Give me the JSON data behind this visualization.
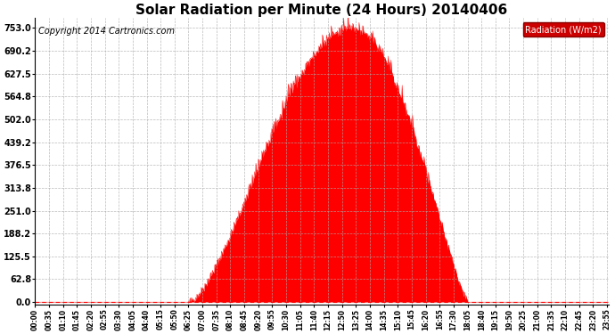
{
  "title": "Solar Radiation per Minute (24 Hours) 20140406",
  "copyright_text": "Copyright 2014 Cartronics.com",
  "legend_label": "Radiation (W/m2)",
  "ytick_labels": [
    "0.0",
    "62.8",
    "125.5",
    "188.2",
    "251.0",
    "313.8",
    "376.5",
    "439.2",
    "502.0",
    "564.8",
    "627.5",
    "690.2",
    "753.0"
  ],
  "ytick_values": [
    0.0,
    62.8,
    125.5,
    188.2,
    251.0,
    313.8,
    376.5,
    439.2,
    502.0,
    564.8,
    627.5,
    690.2,
    753.0
  ],
  "ymax": 780.0,
  "fill_color": "#ff0000",
  "line_color": "#ff0000",
  "background_color": "#ffffff",
  "grid_color": "#aaaaaa",
  "title_fontsize": 11,
  "copyright_fontsize": 7,
  "legend_bg_color": "#cc0000",
  "legend_text_color": "#ffffff",
  "dashed_zero_color": "#ff0000",
  "num_minutes": 1440,
  "xtick_interval_minutes": 35,
  "sunrise_min": 385,
  "sunset_min": 1085,
  "peak_min": 795,
  "peak_value": 753.0,
  "seed": 42
}
